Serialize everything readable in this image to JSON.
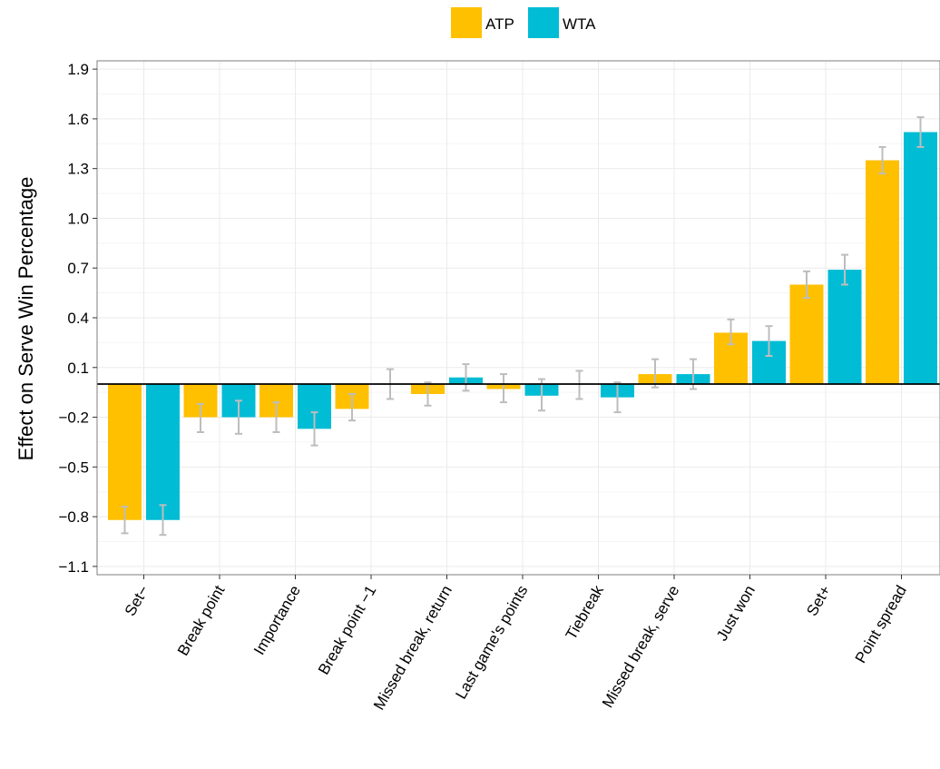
{
  "colors": {
    "atp": "#FFC000",
    "wta": "#00BCD4",
    "error_bar": "#BDBDBD",
    "grid": "#EBEBEB",
    "border": "#7F7F7F",
    "zero_line": "#000000"
  },
  "chart_data": {
    "type": "bar",
    "title": "",
    "xlabel": "",
    "ylabel": "Effect on Serve Win Percentage",
    "ylim": [
      -1.15,
      1.95
    ],
    "yticks": [
      1.9,
      1.6,
      1.3,
      1.0,
      0.7,
      0.4,
      0.1,
      -0.2,
      -0.5,
      -0.8,
      -1.1
    ],
    "ytick_labels": [
      "1.9",
      "1.6",
      "1.3",
      "1.0",
      "0.7",
      "0.4",
      "0.1",
      "−0.2",
      "−0.5",
      "−0.8",
      "−1.1"
    ],
    "grid": true,
    "legend_position": "top",
    "categories": [
      "Set−",
      "Break point",
      "Importance",
      "Break point −1",
      "Missed break, return",
      "Last game's points",
      "Tiebreak",
      "Missed break, serve",
      "Just won",
      "Set+",
      "Point spread"
    ],
    "series": [
      {
        "name": "ATP",
        "values": [
          -0.82,
          -0.2,
          -0.2,
          -0.15,
          -0.06,
          -0.03,
          0.0,
          0.06,
          0.31,
          0.6,
          1.35
        ],
        "error_low": [
          -0.9,
          -0.29,
          -0.29,
          -0.22,
          -0.13,
          -0.11,
          -0.09,
          -0.02,
          0.24,
          0.52,
          1.27
        ],
        "error_high": [
          -0.74,
          -0.12,
          -0.11,
          -0.06,
          0.01,
          0.06,
          0.08,
          0.15,
          0.39,
          0.68,
          1.43
        ]
      },
      {
        "name": "WTA",
        "values": [
          -0.82,
          -0.2,
          -0.27,
          0.0,
          0.04,
          -0.07,
          -0.08,
          0.06,
          0.26,
          0.69,
          1.52
        ],
        "error_low": [
          -0.91,
          -0.3,
          -0.37,
          -0.09,
          -0.04,
          -0.16,
          -0.17,
          -0.03,
          0.17,
          0.6,
          1.43
        ],
        "error_high": [
          -0.73,
          -0.1,
          -0.17,
          0.09,
          0.12,
          0.03,
          0.01,
          0.15,
          0.35,
          0.78,
          1.61
        ]
      }
    ]
  }
}
